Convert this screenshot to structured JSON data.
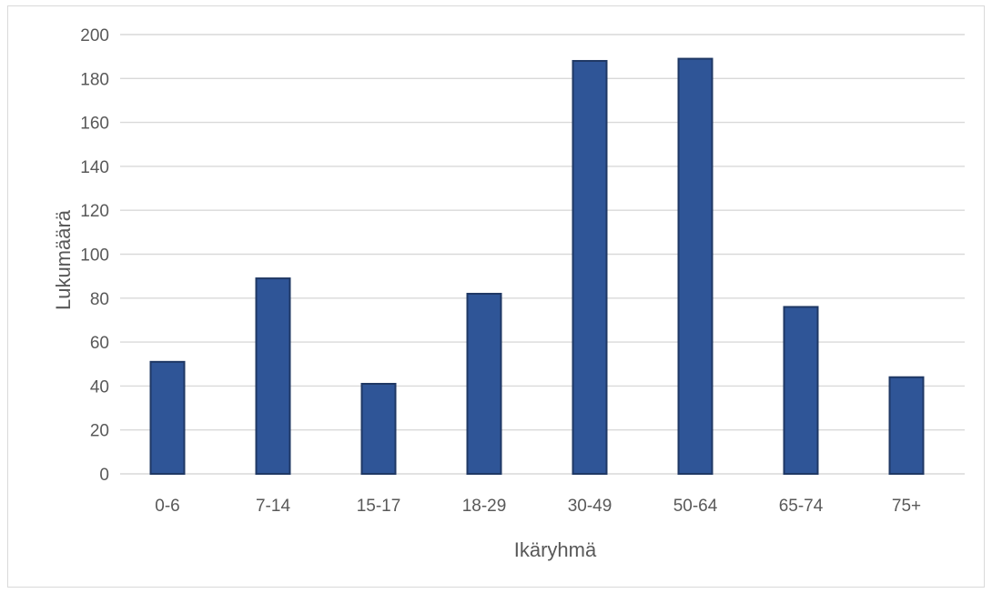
{
  "chart_data": {
    "type": "bar",
    "title": "",
    "xlabel": "Ikäryhmä",
    "ylabel": "Lukumäärä",
    "categories": [
      "0-6",
      "7-14",
      "15-17",
      "18-29",
      "30-49",
      "50-64",
      "65-74",
      "75+"
    ],
    "values": [
      51,
      89,
      41,
      82,
      188,
      189,
      76,
      44
    ],
    "ylim": [
      0,
      200
    ],
    "yticks": [
      0,
      20,
      40,
      60,
      80,
      100,
      120,
      140,
      160,
      180,
      200
    ],
    "grid": true,
    "legend": "none",
    "colors": {
      "bar_fill": "#2f5597",
      "bar_stroke": "#1f3864",
      "grid": "#d9d9d9",
      "text": "#595959"
    }
  }
}
